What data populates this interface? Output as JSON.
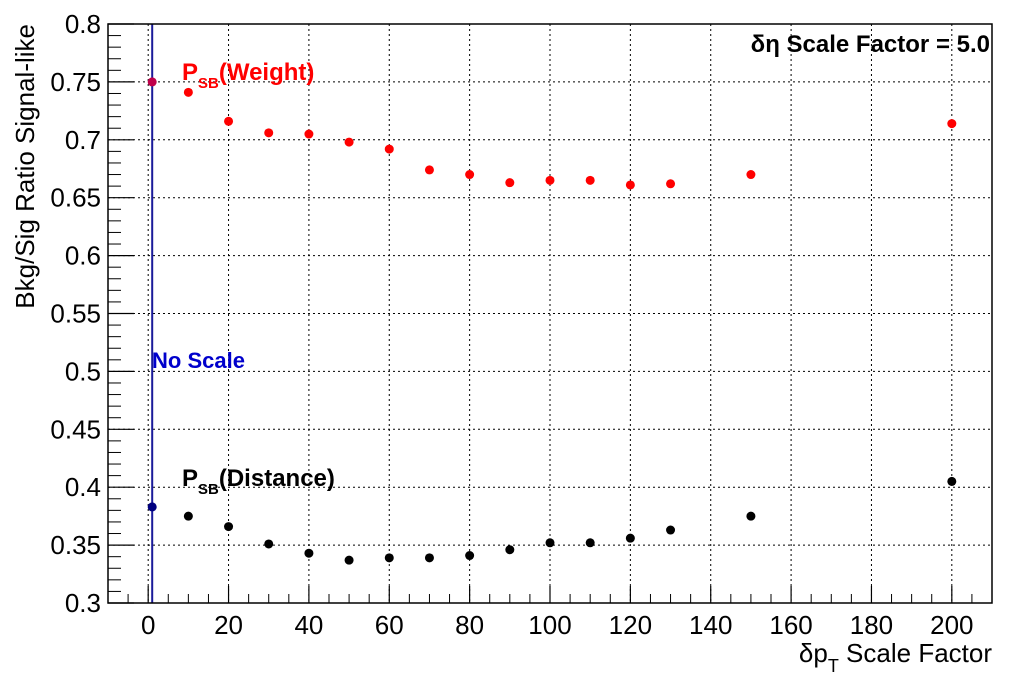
{
  "chart_data": {
    "type": "scatter",
    "xlabel": {
      "main": "δp",
      "sub": "T",
      "rest": " Scale Factor"
    },
    "ylabel": "Bkg/Sig Ratio Signal-like",
    "xlim": [
      -10,
      210
    ],
    "ylim": [
      0.3,
      0.8
    ],
    "x_ticks": [
      "0",
      "20",
      "40",
      "60",
      "80",
      "100",
      "120",
      "140",
      "160",
      "180",
      "200"
    ],
    "y_ticks": [
      "0.3",
      "0.35",
      "0.4",
      "0.45",
      "0.5",
      "0.55",
      "0.6",
      "0.65",
      "0.7",
      "0.75",
      "0.8"
    ],
    "grid": true,
    "series": [
      {
        "name": "P_SB(Weight)",
        "label_main": "P",
        "label_sub": "SB",
        "label_rest": "(Weight)",
        "color": "#ff0000",
        "x": [
          1,
          10,
          20,
          30,
          40,
          50,
          60,
          70,
          80,
          90,
          100,
          110,
          120,
          130,
          150,
          200
        ],
        "y": [
          0.75,
          0.741,
          0.716,
          0.706,
          0.705,
          0.698,
          0.692,
          0.674,
          0.67,
          0.663,
          0.665,
          0.665,
          0.661,
          0.662,
          0.67,
          0.714
        ]
      },
      {
        "name": "P_SB(Distance)",
        "label_main": "P",
        "label_sub": "SB",
        "label_rest": "(Distance)",
        "color": "#000000",
        "x": [
          1,
          10,
          20,
          30,
          40,
          50,
          60,
          70,
          80,
          90,
          100,
          110,
          120,
          130,
          150,
          200
        ],
        "y": [
          0.383,
          0.375,
          0.366,
          0.351,
          0.343,
          0.337,
          0.339,
          0.339,
          0.341,
          0.346,
          0.352,
          0.352,
          0.356,
          0.363,
          0.375,
          0.405
        ]
      }
    ],
    "reference_line": {
      "x": 1,
      "label": "No Scale",
      "color": "#0000cc"
    },
    "annotation": {
      "main": "δη Scale Factor = 5.0"
    },
    "highlight_color": "#000080"
  }
}
